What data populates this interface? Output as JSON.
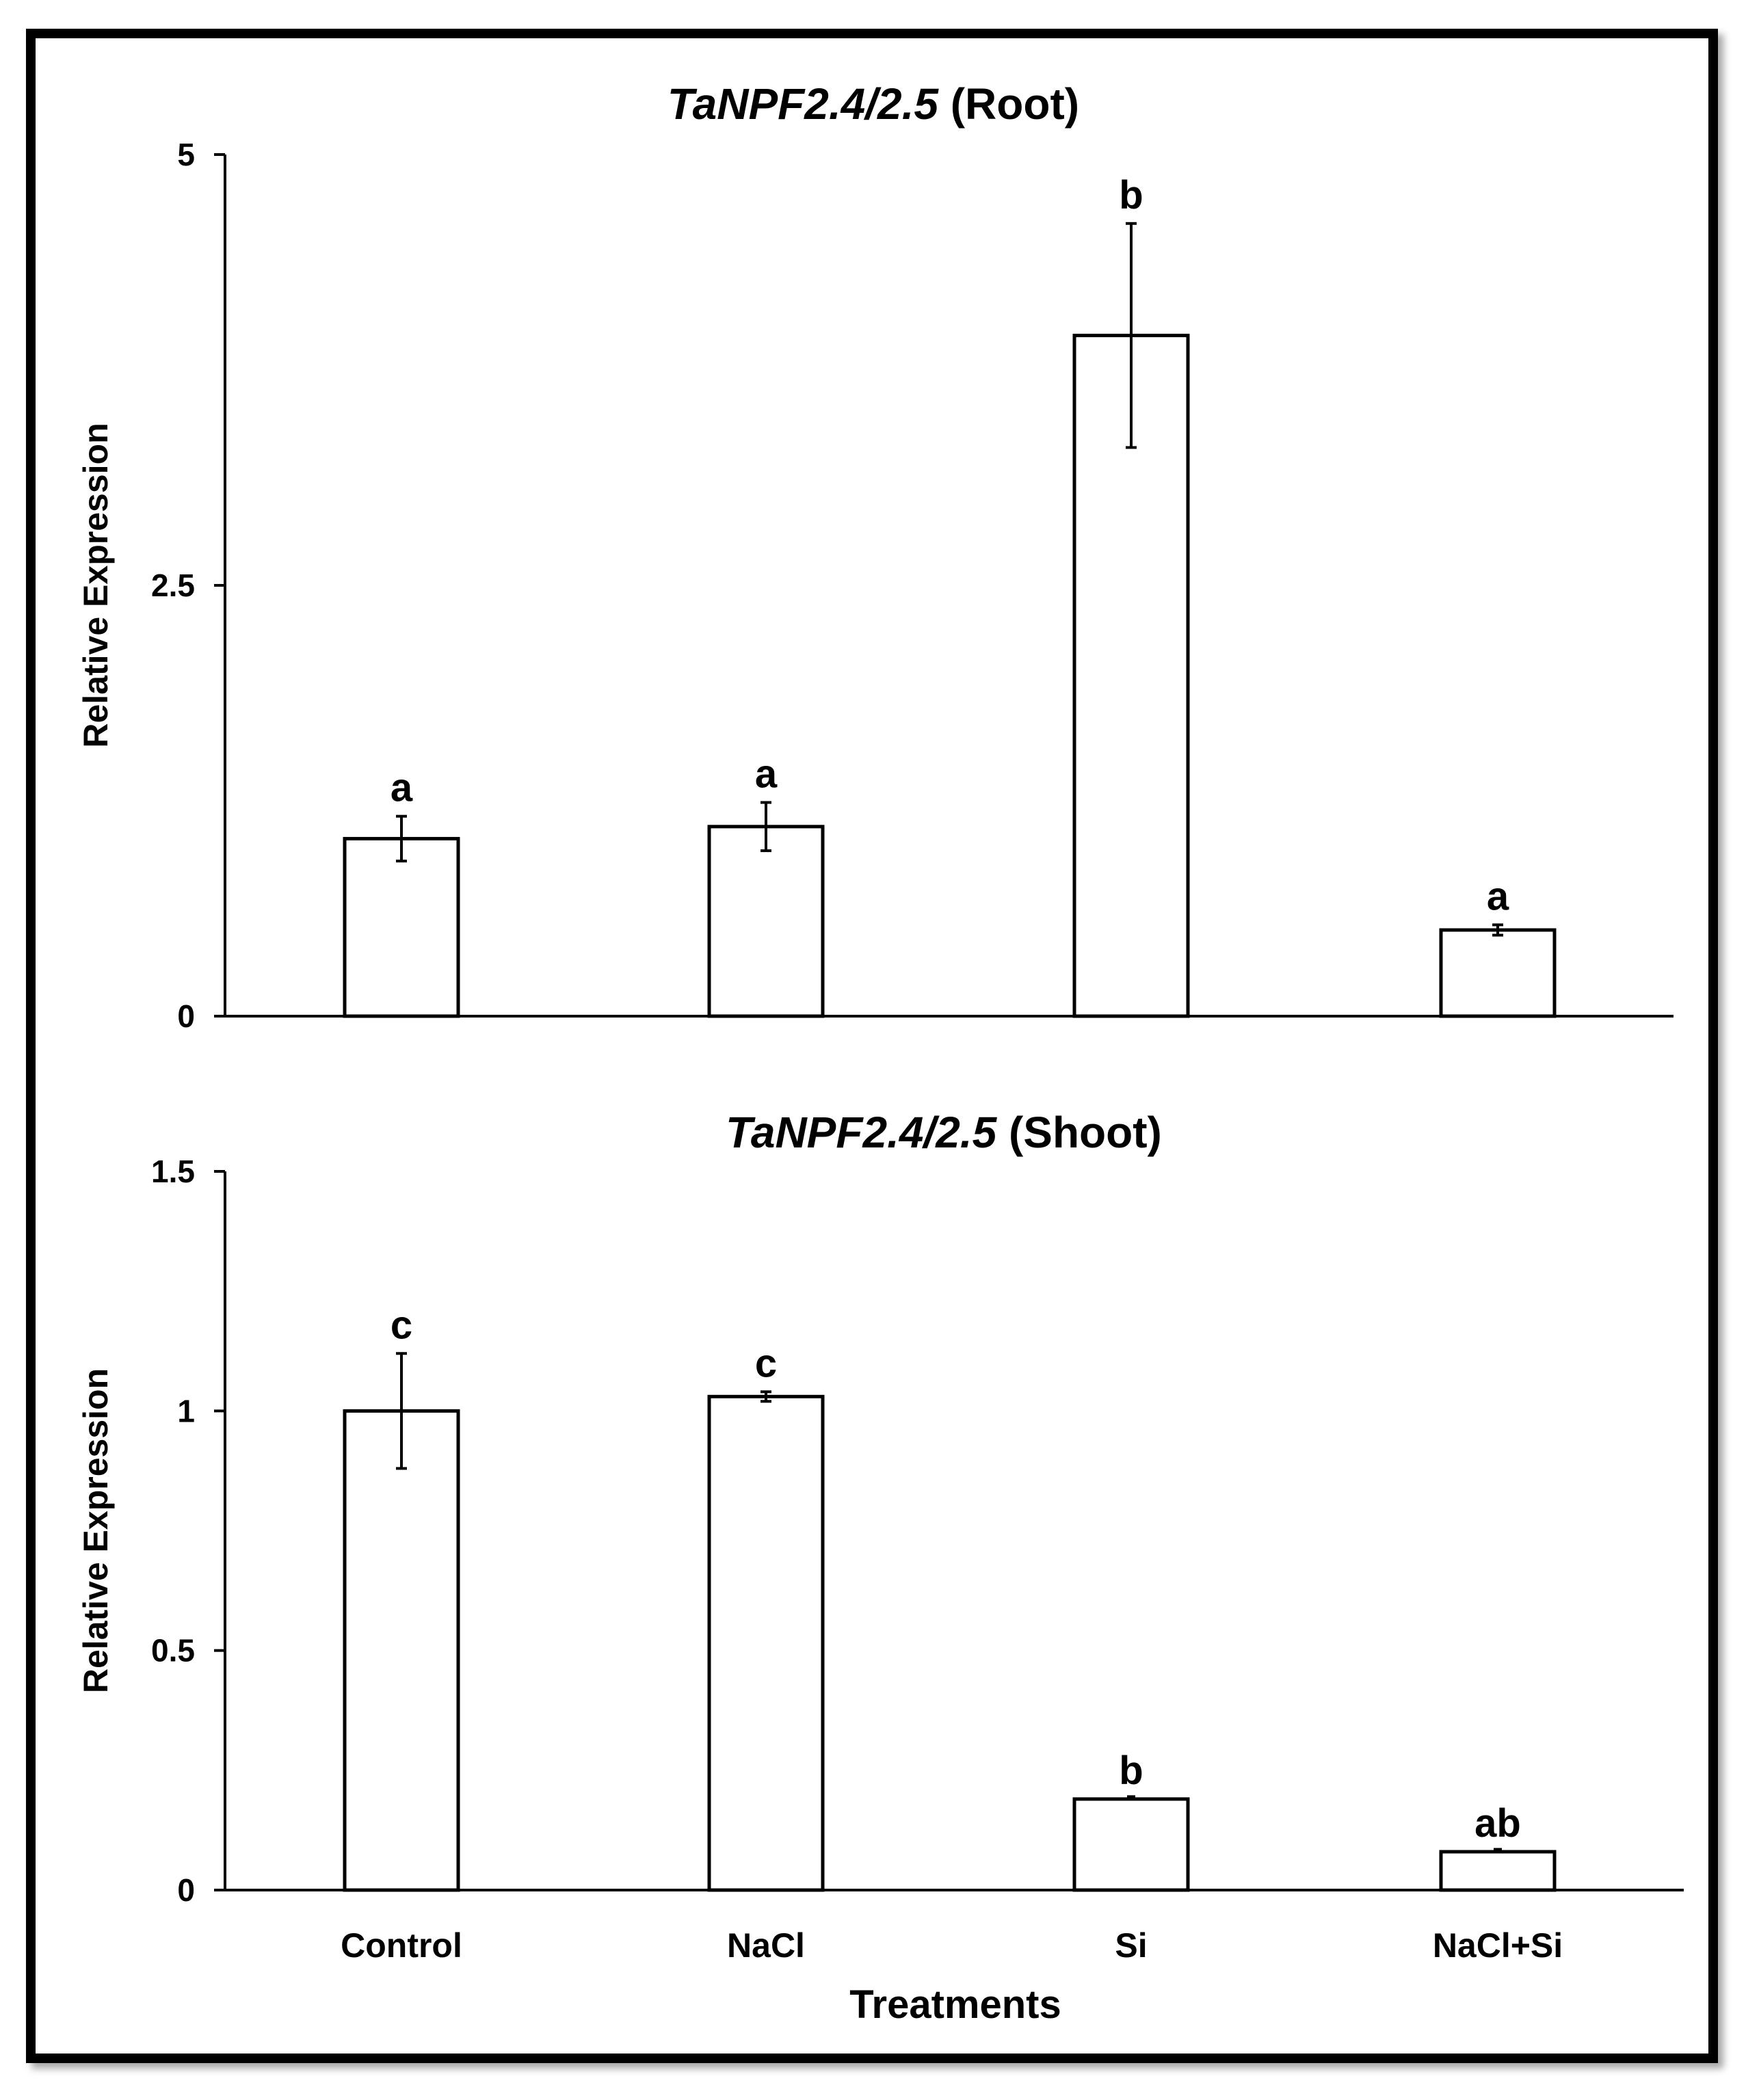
{
  "x_axis_title": "Treatments",
  "chart_data": [
    {
      "type": "bar",
      "title_gene": "TaNPF2.4/2.5",
      "title_suffix": " (Root)",
      "ylabel": "Relative Expression",
      "xlabel": "",
      "ylim": [
        0,
        5
      ],
      "yticks": [
        0,
        2.5,
        5
      ],
      "ytick_labels": [
        "0",
        "2.5",
        "5"
      ],
      "categories": [
        "Control",
        "NaCl",
        "Si",
        "NaCl+Si"
      ],
      "series": [
        {
          "name": "Relative Expression",
          "values": [
            1.03,
            1.1,
            3.95,
            0.5
          ],
          "errors": [
            0.13,
            0.14,
            0.65,
            0.03
          ],
          "labels": [
            "a",
            "a",
            "b",
            "a"
          ]
        }
      ],
      "show_xtick_labels": false
    },
    {
      "type": "bar",
      "title_gene": "TaNPF2.4/2.5",
      "title_suffix": " (Shoot)",
      "ylabel": "Relative Expression",
      "xlabel": "Treatments",
      "ylim": [
        0,
        1.5
      ],
      "yticks": [
        0,
        0.5,
        1,
        1.5
      ],
      "ytick_labels": [
        "0",
        "0.5",
        "1",
        "1.5"
      ],
      "categories": [
        "Control",
        "NaCl",
        "Si",
        "NaCl+Si"
      ],
      "series": [
        {
          "name": "Relative Expression",
          "values": [
            1.0,
            1.03,
            0.19,
            0.08
          ],
          "errors": [
            0.12,
            0.01,
            0.0,
            0.0
          ],
          "labels": [
            "c",
            "c",
            "b",
            "ab"
          ]
        }
      ],
      "show_xtick_labels": true
    }
  ]
}
